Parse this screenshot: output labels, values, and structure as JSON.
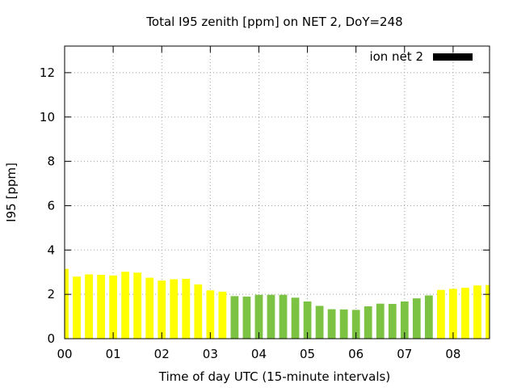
{
  "chart_data": {
    "type": "bar",
    "title": "Total I95 zenith [ppm] on NET 2, DoY=248",
    "xlabel": "Time of day UTC (15-minute intervals)",
    "ylabel": "I95 [ppm]",
    "xlim": [
      0,
      8.75
    ],
    "ylim": [
      0,
      13.2
    ],
    "x_ticks": [
      {
        "value": 0,
        "label": "00"
      },
      {
        "value": 1,
        "label": "01"
      },
      {
        "value": 2,
        "label": "02"
      },
      {
        "value": 3,
        "label": "03"
      },
      {
        "value": 4,
        "label": "04"
      },
      {
        "value": 5,
        "label": "05"
      },
      {
        "value": 6,
        "label": "06"
      },
      {
        "value": 7,
        "label": "07"
      },
      {
        "value": 8,
        "label": "08"
      }
    ],
    "y_ticks": [
      0,
      2,
      4,
      6,
      8,
      10,
      12
    ],
    "grid": true,
    "legend_position": "top-right",
    "series": [
      {
        "name": "ion net 2",
        "color": "#000000"
      }
    ],
    "bar_colors": {
      "yellow": "#ffff00",
      "green": "#7cc243"
    },
    "bars": [
      {
        "x": 0.0,
        "value": 3.15,
        "color": "yellow"
      },
      {
        "x": 0.25,
        "value": 2.8,
        "color": "yellow"
      },
      {
        "x": 0.5,
        "value": 2.9,
        "color": "yellow"
      },
      {
        "x": 0.75,
        "value": 2.88,
        "color": "yellow"
      },
      {
        "x": 1.0,
        "value": 2.85,
        "color": "yellow"
      },
      {
        "x": 1.25,
        "value": 3.02,
        "color": "yellow"
      },
      {
        "x": 1.5,
        "value": 2.98,
        "color": "yellow"
      },
      {
        "x": 1.75,
        "value": 2.75,
        "color": "yellow"
      },
      {
        "x": 2.0,
        "value": 2.62,
        "color": "yellow"
      },
      {
        "x": 2.25,
        "value": 2.68,
        "color": "yellow"
      },
      {
        "x": 2.5,
        "value": 2.7,
        "color": "yellow"
      },
      {
        "x": 2.75,
        "value": 2.45,
        "color": "yellow"
      },
      {
        "x": 3.0,
        "value": 2.18,
        "color": "yellow"
      },
      {
        "x": 3.25,
        "value": 2.12,
        "color": "yellow"
      },
      {
        "x": 3.5,
        "value": 1.92,
        "color": "green"
      },
      {
        "x": 3.75,
        "value": 1.9,
        "color": "green"
      },
      {
        "x": 4.0,
        "value": 1.98,
        "color": "green"
      },
      {
        "x": 4.25,
        "value": 1.98,
        "color": "green"
      },
      {
        "x": 4.5,
        "value": 1.98,
        "color": "green"
      },
      {
        "x": 4.75,
        "value": 1.85,
        "color": "green"
      },
      {
        "x": 5.0,
        "value": 1.68,
        "color": "green"
      },
      {
        "x": 5.25,
        "value": 1.48,
        "color": "green"
      },
      {
        "x": 5.5,
        "value": 1.33,
        "color": "green"
      },
      {
        "x": 5.75,
        "value": 1.32,
        "color": "green"
      },
      {
        "x": 6.0,
        "value": 1.3,
        "color": "green"
      },
      {
        "x": 6.25,
        "value": 1.46,
        "color": "green"
      },
      {
        "x": 6.5,
        "value": 1.58,
        "color": "green"
      },
      {
        "x": 6.75,
        "value": 1.57,
        "color": "green"
      },
      {
        "x": 7.0,
        "value": 1.68,
        "color": "green"
      },
      {
        "x": 7.25,
        "value": 1.82,
        "color": "green"
      },
      {
        "x": 7.5,
        "value": 1.95,
        "color": "green"
      },
      {
        "x": 7.75,
        "value": 2.2,
        "color": "yellow"
      },
      {
        "x": 8.0,
        "value": 2.25,
        "color": "yellow"
      },
      {
        "x": 8.25,
        "value": 2.3,
        "color": "yellow"
      },
      {
        "x": 8.5,
        "value": 2.4,
        "color": "yellow"
      },
      {
        "x": 8.75,
        "value": 2.42,
        "color": "yellow"
      }
    ]
  }
}
